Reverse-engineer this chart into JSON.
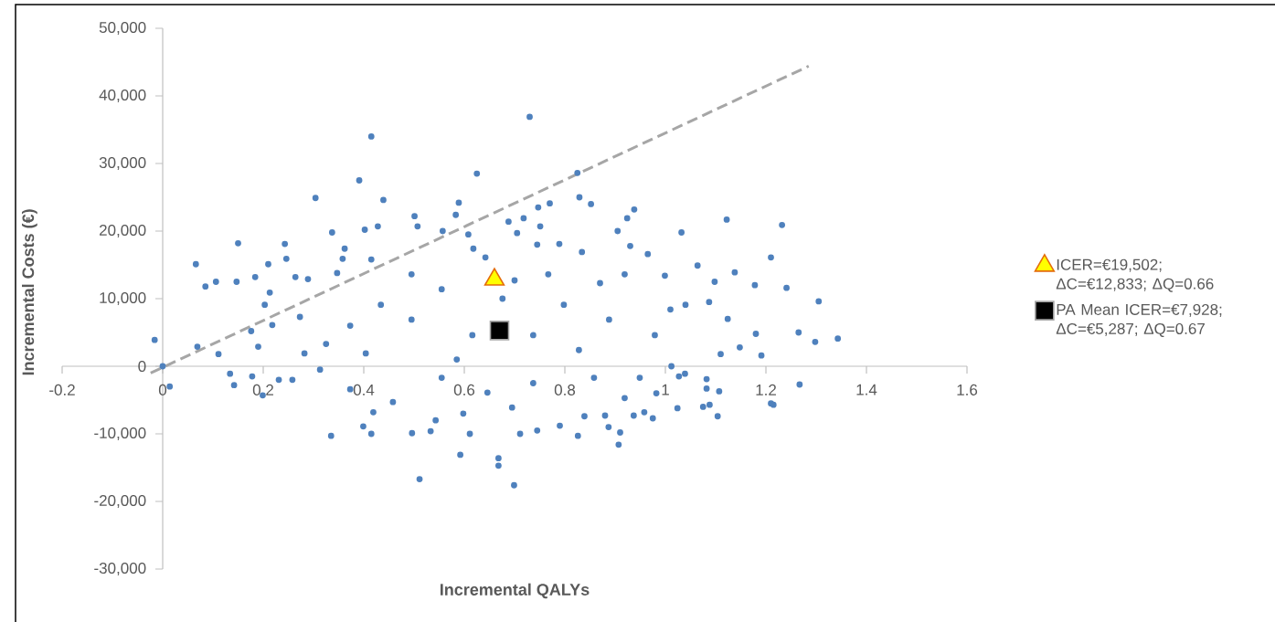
{
  "chart_data": {
    "type": "scatter",
    "xlabel": "Incremental QALYs",
    "ylabel": "Incremental Costs (€)",
    "xlim": [
      -0.2,
      1.6
    ],
    "ylim": [
      -30000,
      50000
    ],
    "xticks": [
      -0.2,
      0,
      0.2,
      0.4,
      0.6,
      0.8,
      1,
      1.2,
      1.4,
      1.6
    ],
    "yticks": [
      {
        "value": -30000,
        "label": "-30,000"
      },
      {
        "value": -20000,
        "label": "-20,000"
      },
      {
        "value": -10000,
        "label": "-10,000"
      },
      0,
      {
        "value": 10000,
        "label": "10,000"
      },
      {
        "value": 20000,
        "label": "20,000"
      },
      {
        "value": 30000,
        "label": "30,000"
      },
      {
        "value": 40000,
        "label": "40,000"
      },
      {
        "value": 50000,
        "label": "50,000"
      }
    ],
    "legend": "right",
    "series": [
      {
        "marker": "circle",
        "color": "#4f81bd",
        "x": [
          0.73,
          0.415,
          0.625,
          0.391,
          0.304,
          0.439,
          0.825,
          0.829,
          0.852,
          0.77,
          0.747,
          0.501,
          0.589,
          0.583,
          0.402,
          0.428,
          0.337,
          0.15,
          0.243,
          0.066,
          0.085,
          0.106,
          0.147,
          0.184,
          0.21,
          0.246,
          -0.016,
          0.069,
          0.176,
          0.19,
          0.203,
          0.213,
          0.218,
          0.289,
          0.264,
          0.273,
          0.362,
          0.358,
          0.415,
          0.347,
          0.507,
          0.557,
          0.608,
          0.618,
          0.642,
          0.688,
          0.705,
          0.718,
          0.751,
          0.789,
          0.745,
          0.834,
          0.495,
          0.555,
          0.676,
          0.434,
          0.373,
          0.325,
          0.495,
          0.616,
          0.798,
          0.737,
          0.828,
          0.585,
          0.404,
          0.767,
          0.7,
          0.938,
          0.924,
          0.905,
          1.032,
          1.122,
          1.232,
          1.21,
          1.138,
          1.178,
          1.241,
          1.305,
          1.343,
          1.298,
          1.265,
          1.18,
          1.124,
          1.087,
          1.064,
          1.098,
          0.999,
          0.965,
          0.93,
          1.04,
          1.01,
          1.148,
          1.11,
          1.191,
          0.888,
          0.979,
          0.919,
          0.87,
          0,
          0.014,
          0.111,
          0.134,
          0.142,
          0.178,
          0.199,
          0.231,
          0.258,
          0.335,
          0.399,
          0.415,
          0.419,
          0.496,
          0.511,
          0.533,
          0.543,
          0.592,
          0.611,
          0.668,
          0.668,
          0.699,
          0.711,
          0.745,
          0.79,
          0.826,
          0.839,
          0.458,
          0.373,
          0.555,
          0.646,
          0.737,
          0.695,
          0.598,
          0.282,
          0.313,
          0.907,
          0.91,
          0.887,
          0.975,
          0.958,
          0.937,
          1.024,
          1.075,
          1.104,
          1.088,
          1.107,
          1.082,
          1.082,
          1.039,
          1.027,
          1.012,
          1.267,
          1.21,
          1.215,
          0.982,
          0.919,
          0.88,
          0.949,
          0.858
        ],
        "values": [
          36900,
          34000,
          28500,
          27500,
          24900,
          24600,
          28600,
          25000,
          24000,
          24100,
          23500,
          22200,
          24200,
          22400,
          20200,
          20700,
          19800,
          18200,
          18100,
          15100,
          11800,
          12500,
          12500,
          13200,
          15100,
          15900,
          3900,
          2900,
          5200,
          2900,
          9100,
          10900,
          6100,
          12900,
          13200,
          7300,
          17400,
          15900,
          15800,
          13800,
          20700,
          20000,
          19500,
          17400,
          16100,
          21400,
          19700,
          21900,
          20700,
          18100,
          18000,
          16900,
          13600,
          11400,
          10000,
          9100,
          6000,
          3300,
          6900,
          4600,
          9100,
          4600,
          2400,
          1000,
          1900,
          13600,
          12700,
          23200,
          21900,
          20000,
          19800,
          21700,
          20900,
          16100,
          13900,
          12000,
          11600,
          9600,
          4100,
          3600,
          5000,
          4800,
          7000,
          9500,
          14900,
          12500,
          13400,
          16600,
          17800,
          9100,
          8400,
          2800,
          1800,
          1600,
          6900,
          4600,
          13600,
          12300,
          0,
          -3000,
          1800,
          -1100,
          -2800,
          -1500,
          -4300,
          -2000,
          -2000,
          -10300,
          -8900,
          -10000,
          -6800,
          -9900,
          -16700,
          -9600,
          -8000,
          -13100,
          -10000,
          -13600,
          -14700,
          -17600,
          -10000,
          -9500,
          -8800,
          -10300,
          -7400,
          -5300,
          -3400,
          -1700,
          -3900,
          -2500,
          -6100,
          -7000,
          1900,
          -500,
          -11600,
          -9800,
          -9000,
          -7700,
          -6800,
          -7300,
          -6200,
          -6000,
          -7400,
          -5700,
          -3700,
          -3300,
          -1900,
          -1100,
          -1500,
          0,
          -2700,
          -5500,
          -5700,
          -4000,
          -4700,
          -7300,
          -1700,
          -1700
        ]
      },
      {
        "type": "line",
        "line_style": "dashed",
        "color": "#a6a6a6",
        "x": [
          -0.024,
          1.285
        ],
        "values": [
          -1000,
          44400
        ]
      },
      {
        "type": "scatter",
        "marker": "triangle",
        "name": "ICER=€19,502; ΔC=€12,833; ΔQ=0.66",
        "color": "#ffff00",
        "x": [
          0.66
        ],
        "values": [
          12833
        ]
      },
      {
        "type": "scatter",
        "marker": "square",
        "name": "PA Mean ICER=€7,928; ΔC=€5,287; ΔQ=0.67",
        "color": "#000000",
        "x": [
          0.67
        ],
        "values": [
          5287
        ]
      }
    ]
  }
}
